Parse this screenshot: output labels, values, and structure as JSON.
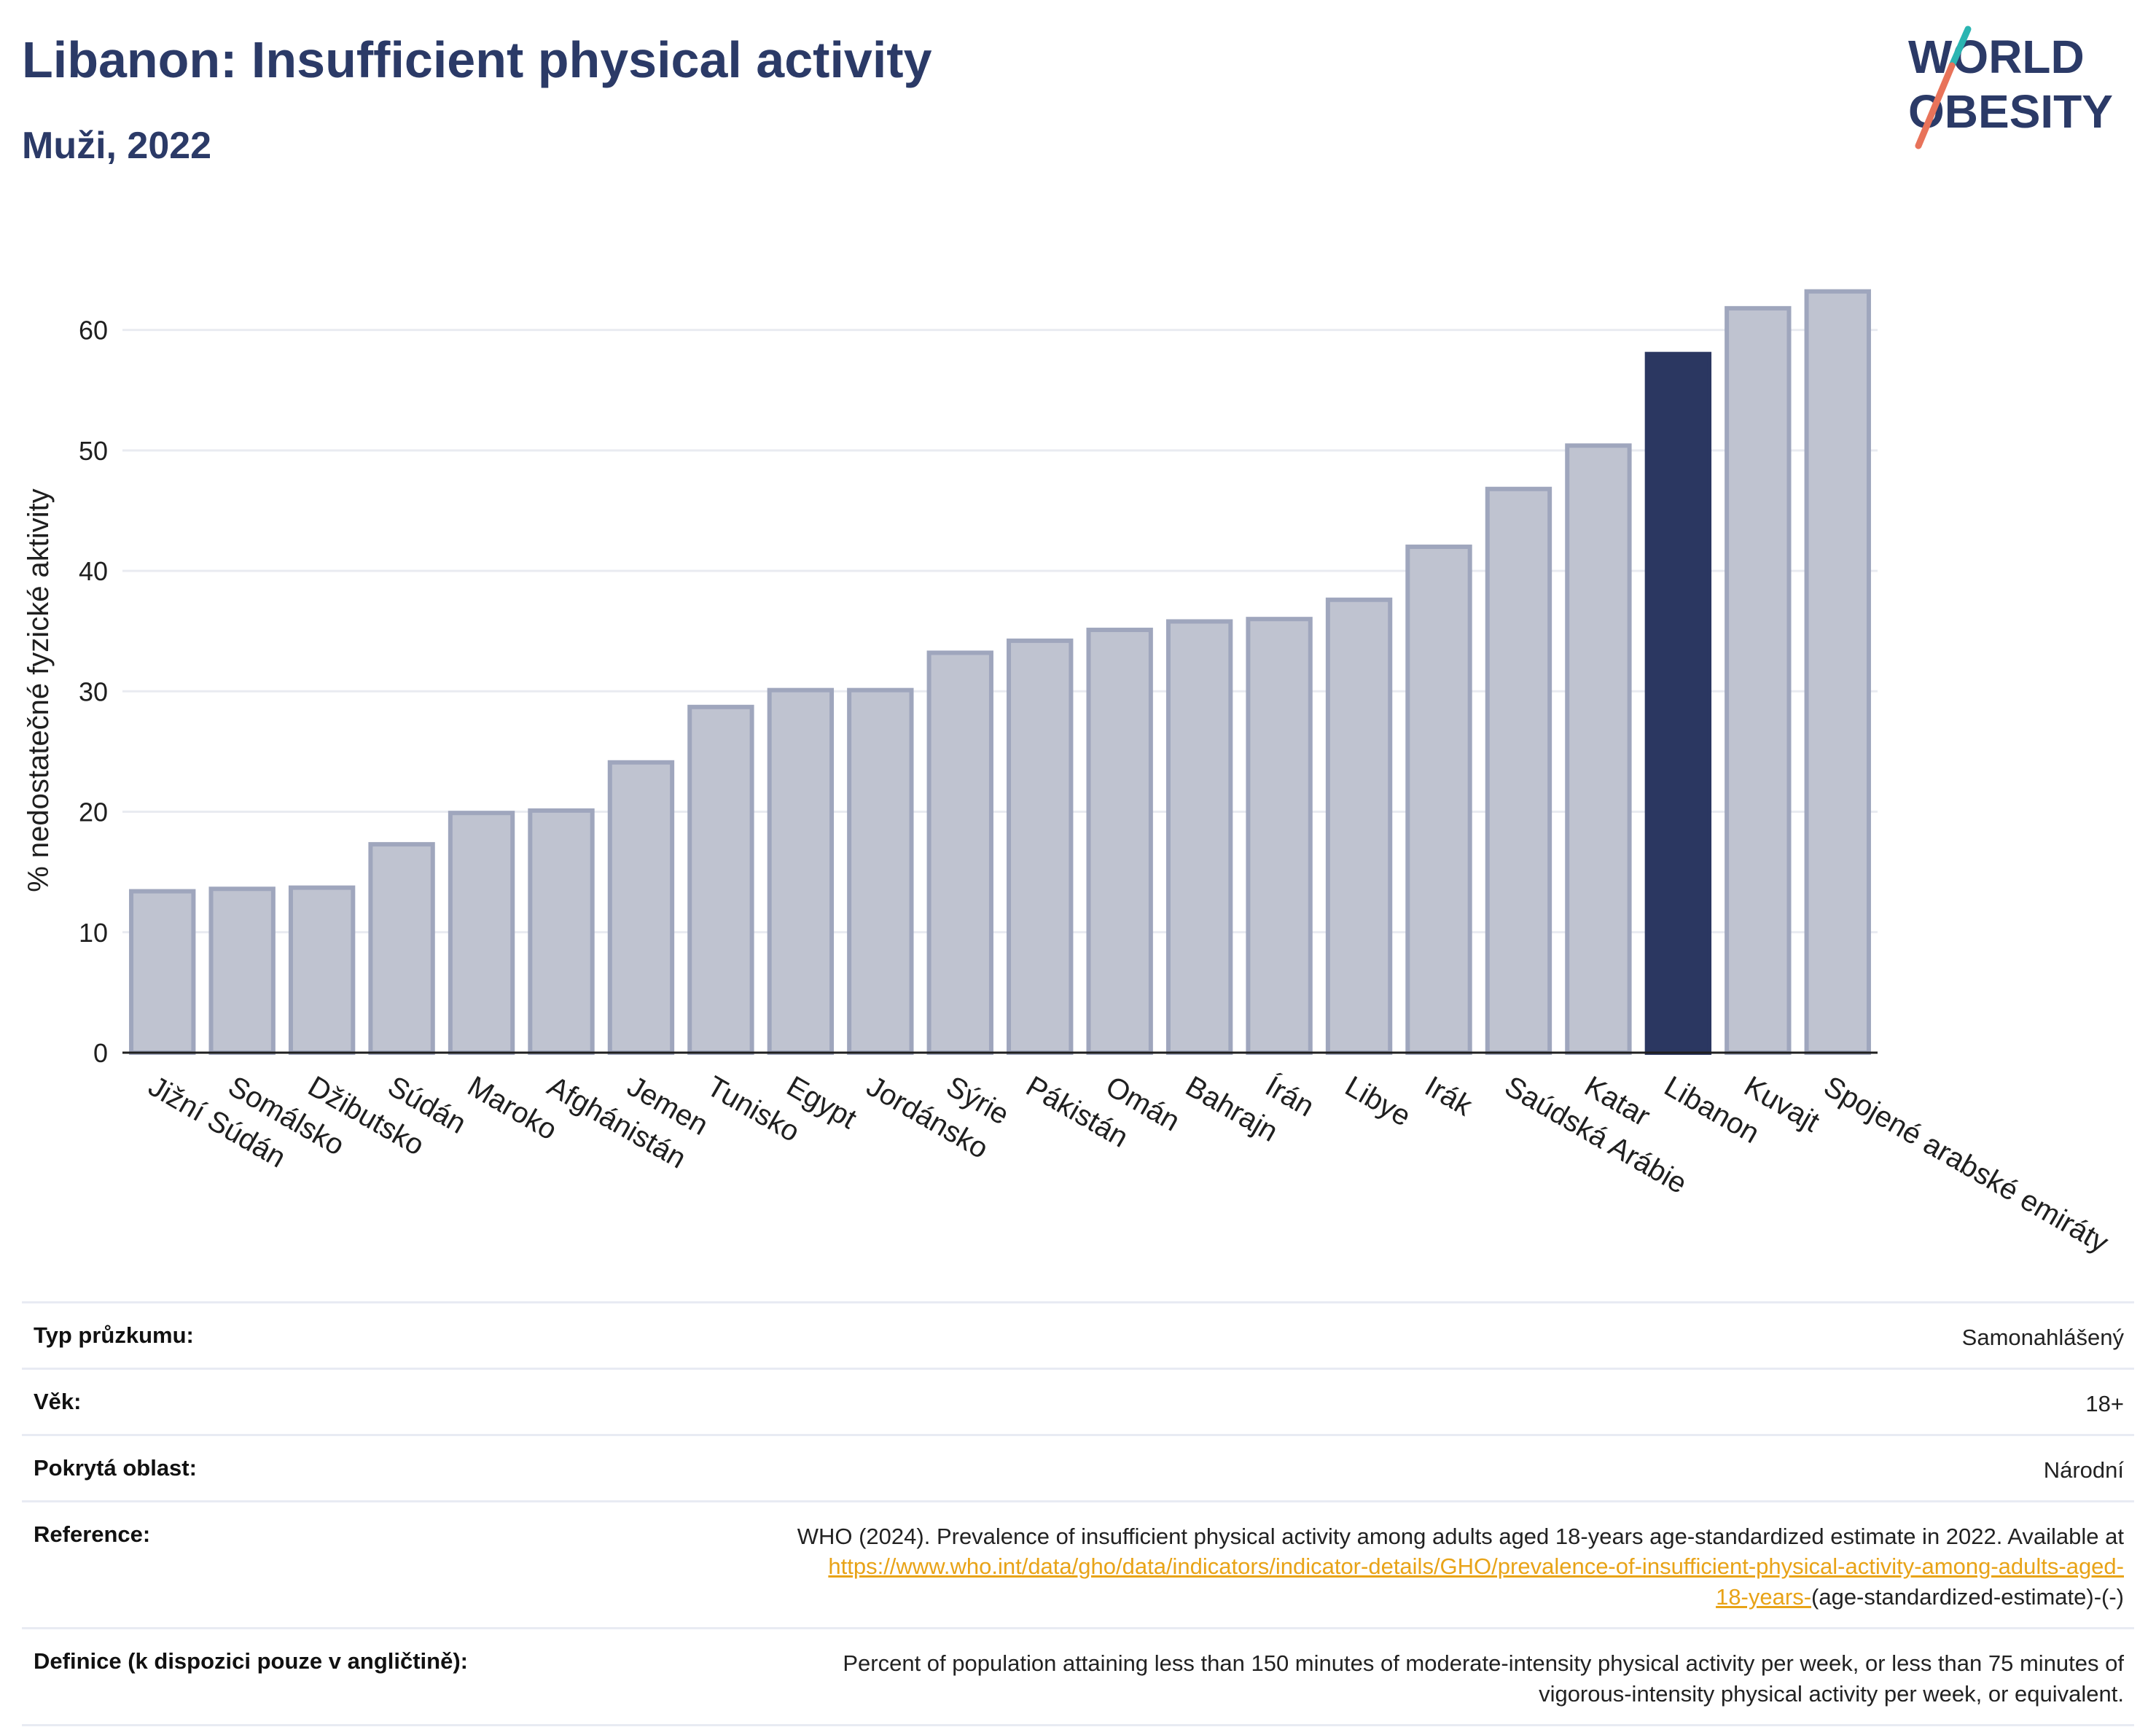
{
  "header": {
    "title": "Libanon: Insufficient physical activity",
    "subtitle": "Muži, 2022"
  },
  "logo": {
    "line1": "WORLD",
    "line2": "OBESITY"
  },
  "colors": {
    "bar_default": "#bfc3d0",
    "bar_border": "#9fa6bd",
    "bar_highlight": "#2b3761",
    "title": "#2b3a67",
    "grid": "#e9ebf1",
    "link": "#e8a317",
    "logo_slash_top": "#2bb5b2",
    "logo_slash_bottom": "#e8735a"
  },
  "chart_data": {
    "type": "bar",
    "title": "",
    "xlabel": "",
    "ylabel": "% nedostatečné fyzické aktivity",
    "ylim": [
      0,
      65
    ],
    "yticks": [
      0,
      10,
      20,
      30,
      40,
      50,
      60
    ],
    "grid": true,
    "highlight": "Libanon",
    "categories": [
      "Jižní Súdán",
      "Somálsko",
      "Džibutsko",
      "Súdán",
      "Maroko",
      "Afghánistán",
      "Jemen",
      "Tunisko",
      "Egypt",
      "Jordánsko",
      "Sýrie",
      "Pákistán",
      "Omán",
      "Bahrajn",
      "Írán",
      "Libye",
      "Irák",
      "Saúdská Arábie",
      "Katar",
      "Libanon",
      "Kuvajt",
      "Spojené arabské emiráty"
    ],
    "values": [
      13.4,
      13.6,
      13.7,
      17.3,
      19.9,
      20.1,
      24.1,
      28.7,
      30.1,
      30.1,
      33.2,
      34.2,
      35.1,
      35.8,
      36.0,
      37.6,
      42.0,
      46.8,
      50.4,
      58.0,
      61.8,
      63.2
    ]
  },
  "meta": {
    "survey_type_label": "Typ průzkumu:",
    "survey_type_value": "Samonahlášený",
    "age_label": "Věk:",
    "age_value": "18+",
    "coverage_label": "Pokrytá oblast:",
    "coverage_value": "Národní",
    "reference_label": "Reference:",
    "reference_text": "WHO (2024). Prevalence of insufficient physical activity among adults aged 18-years age-standardized estimate in 2022. Available at",
    "reference_link_line1": "https://www.who.int/data/gho/data/indicators/indicator-details/GHO/prevalence-of-insufficient-physical-activity-among-adults-aged-",
    "reference_link_line2": "18-years-",
    "reference_suffix": "(age-standardized-estimate)-(-)",
    "definition_label": "Definice (k dispozici pouze v angličtině):",
    "definition_line1": "Percent of population attaining less than 150 minutes of moderate-intensity physical activity per week, or less than 75 minutes of",
    "definition_line2": "vigorous-intensity physical activity per week, or equivalent."
  }
}
